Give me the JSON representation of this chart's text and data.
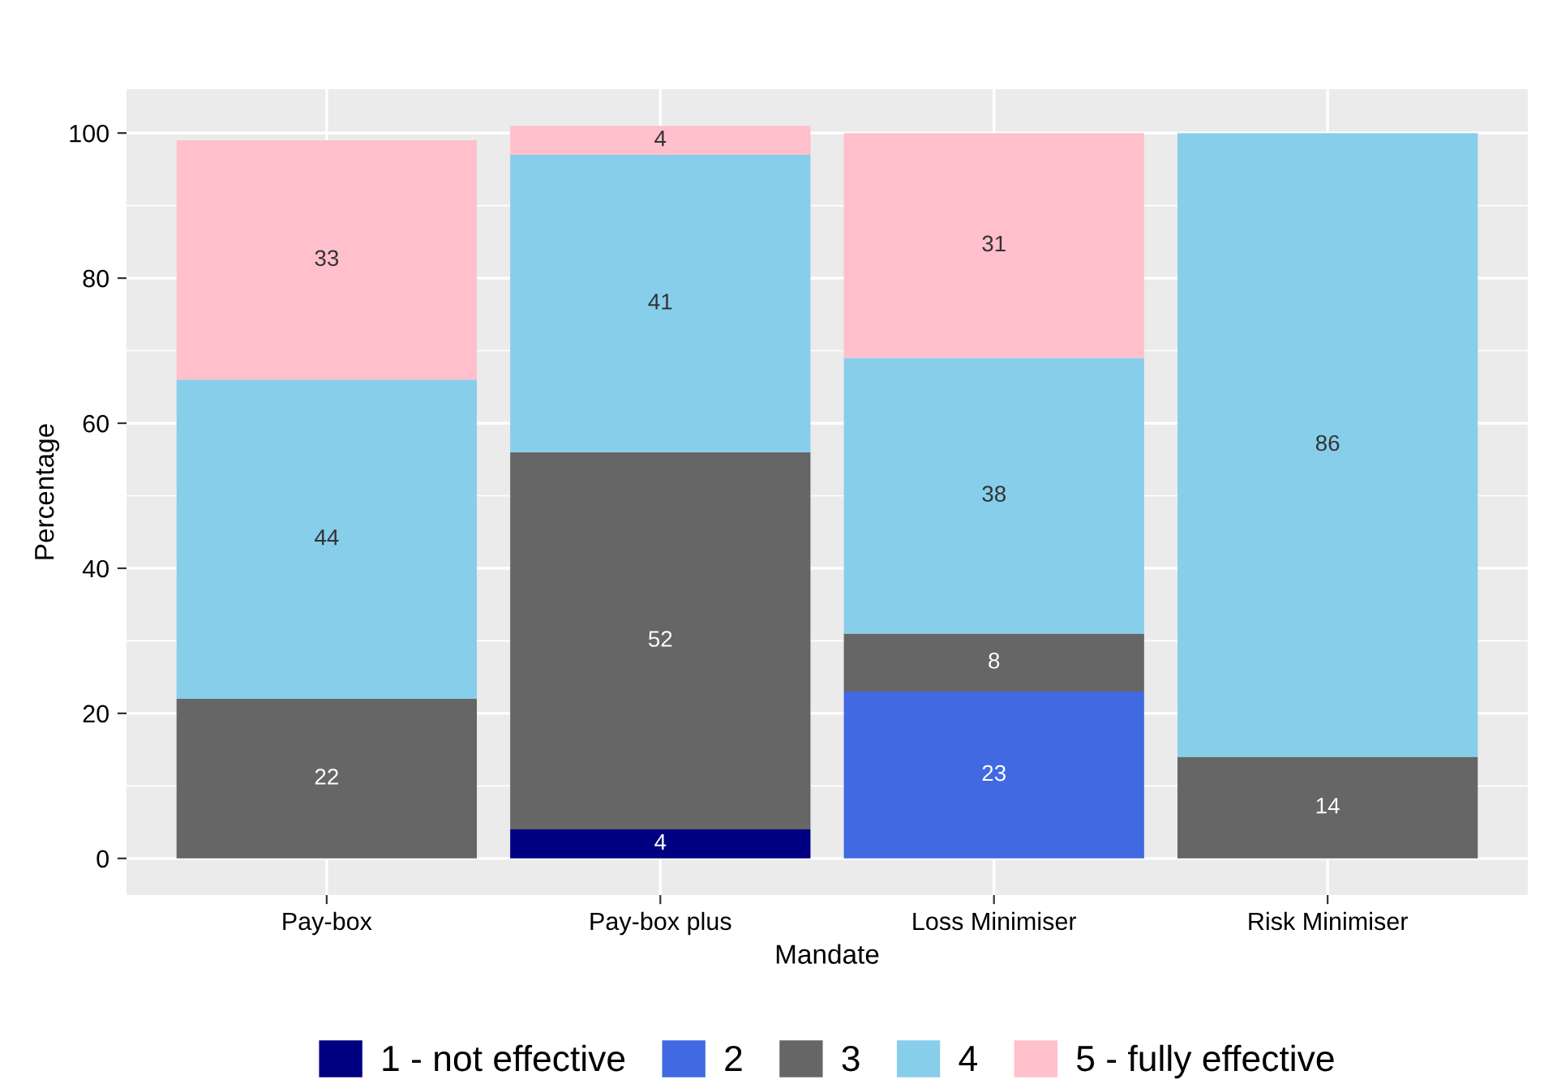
{
  "chart_data": {
    "type": "bar",
    "stacked": true,
    "xlabel": "Mandate",
    "ylabel": "Percentage",
    "categories": [
      "Pay-box",
      "Pay-box plus",
      "Loss Minimiser",
      "Risk Minimiser"
    ],
    "series": [
      {
        "name": "1 - not effective",
        "color": "#000080",
        "values": [
          null,
          4,
          null,
          null
        ]
      },
      {
        "name": "2",
        "color": "#4169e1",
        "values": [
          null,
          null,
          23,
          null
        ]
      },
      {
        "name": "3",
        "color": "#666666",
        "values": [
          22,
          52,
          8,
          14
        ]
      },
      {
        "name": "4",
        "color": "#87ceeb",
        "values": [
          44,
          41,
          38,
          86
        ]
      },
      {
        "name": "5 - fully effective",
        "color": "#ffc0cb",
        "values": [
          33,
          4,
          31,
          null
        ]
      }
    ],
    "ylim": [
      -5.05,
      106.05
    ],
    "yticks": [
      0,
      20,
      40,
      60,
      80,
      100
    ],
    "grid": true,
    "legend": "bottom",
    "data_labels": true
  }
}
